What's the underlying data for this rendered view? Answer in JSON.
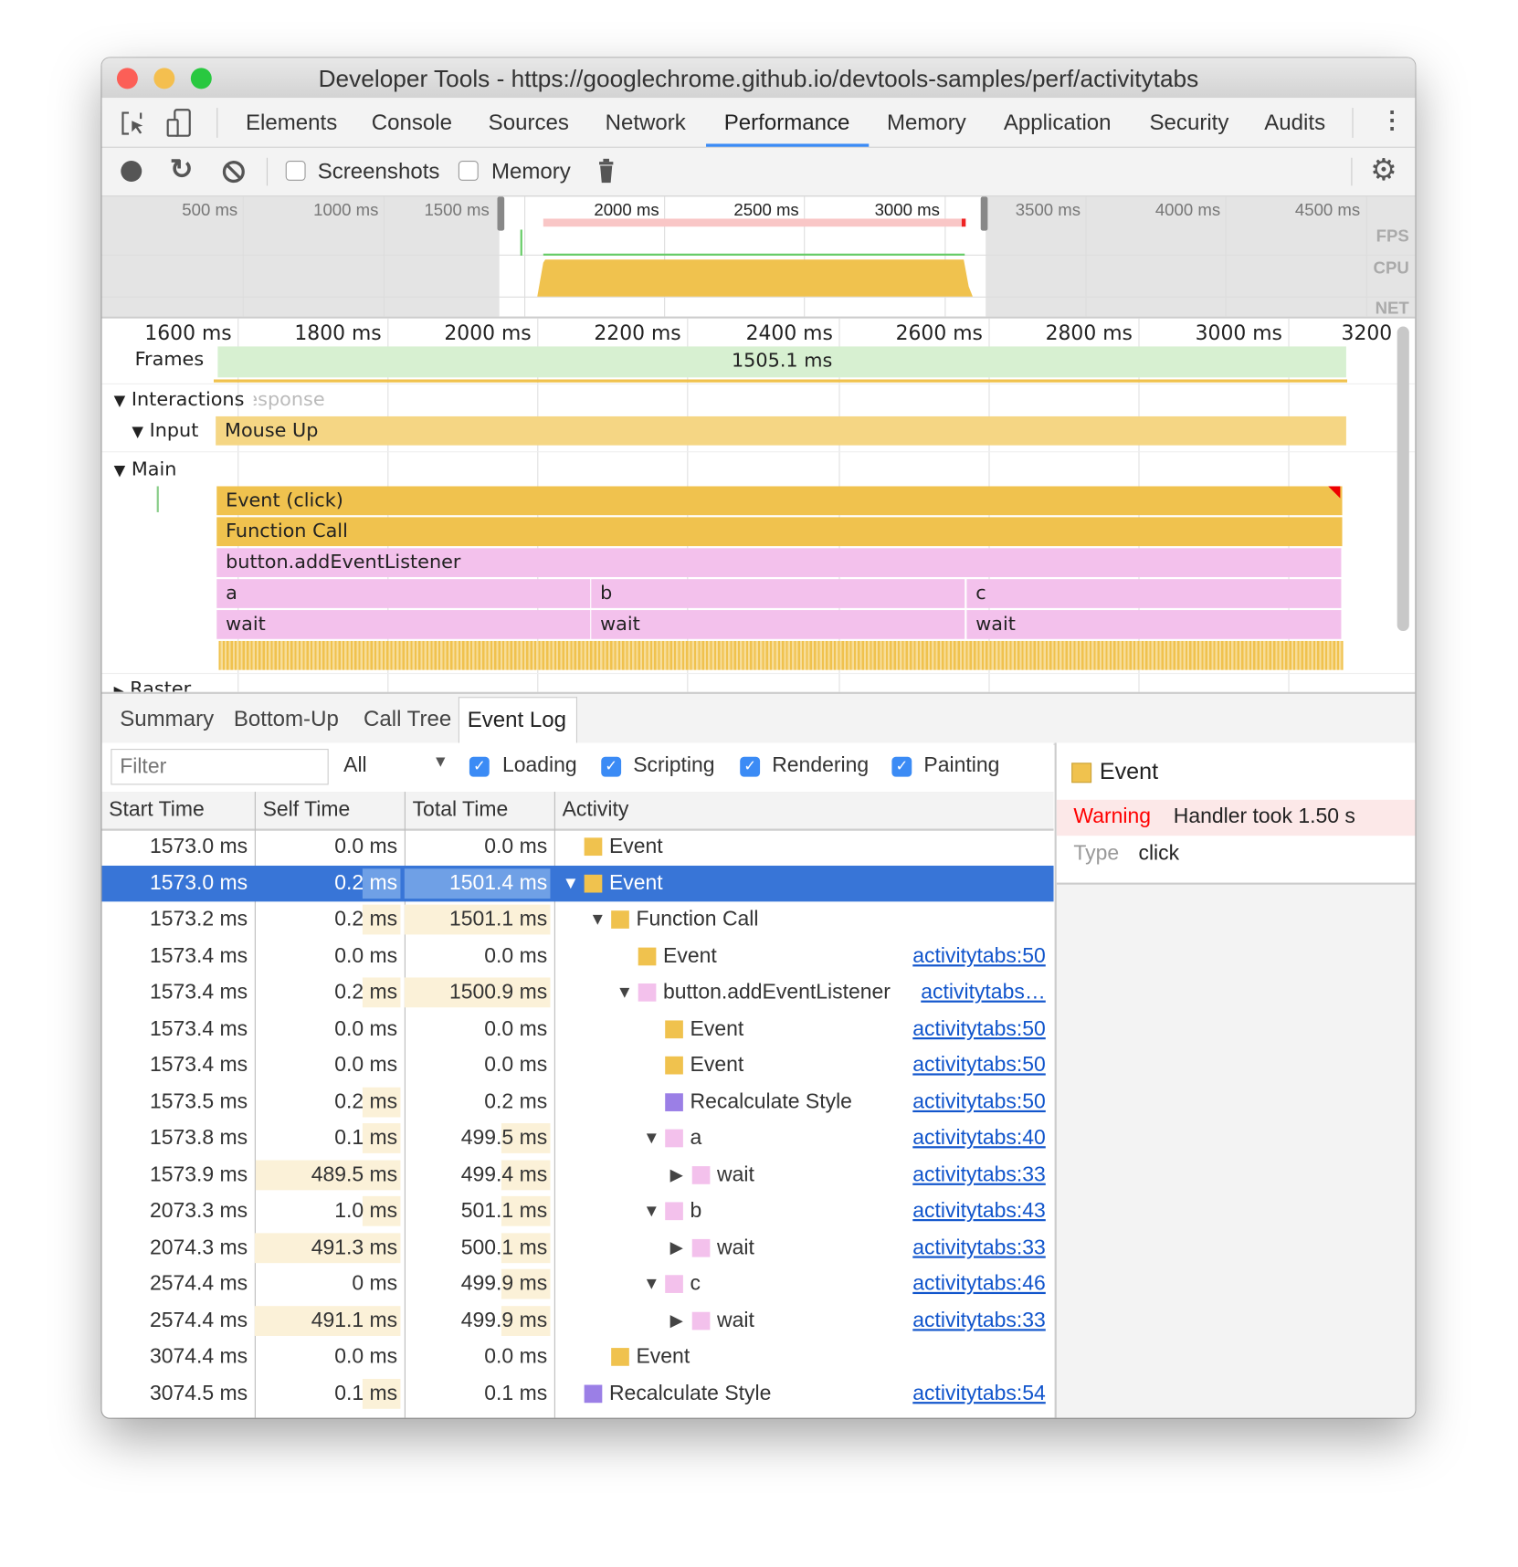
{
  "window": {
    "title": "Developer Tools - https://googlechrome.github.io/devtools-samples/perf/activitytabs"
  },
  "tabs": [
    {
      "label": "Elements"
    },
    {
      "label": "Console"
    },
    {
      "label": "Sources"
    },
    {
      "label": "Network"
    },
    {
      "label": "Performance",
      "active": true
    },
    {
      "label": "Memory"
    },
    {
      "label": "Application"
    },
    {
      "label": "Security"
    },
    {
      "label": "Audits"
    }
  ],
  "toolbar": {
    "screenshots_label": "Screenshots",
    "memory_label": "Memory",
    "screenshots_checked": false,
    "memory_checked": false
  },
  "overview": {
    "ticks": [
      "500 ms",
      "1000 ms",
      "1500 ms",
      "2000 ms",
      "2500 ms",
      "3000 ms",
      "3500 ms",
      "4000 ms",
      "4500 ms"
    ],
    "fps": "FPS",
    "cpu": "CPU",
    "net": "NET"
  },
  "flame": {
    "ticks": [
      "1600 ms",
      "1800 ms",
      "2000 ms",
      "2200 ms",
      "2400 ms",
      "2600 ms",
      "2800 ms",
      "3000 ms",
      "3200"
    ],
    "frames_label": "Frames",
    "frame_duration": "1505.1 ms",
    "interactions_label": "Interactions",
    "interactions_overlay": "Response",
    "input_label": "Input",
    "mouse_up": "Mouse Up",
    "main_label": "Main",
    "raster_label": "Raster",
    "event_click": "Event (click)",
    "function_call": "Function Call",
    "add_listener": "button.addEventListener",
    "a": "a",
    "b": "b",
    "c": "c",
    "wait": "wait"
  },
  "bottom_tabs": [
    {
      "label": "Summary"
    },
    {
      "label": "Bottom-Up"
    },
    {
      "label": "Call Tree"
    },
    {
      "label": "Event Log",
      "active": true
    }
  ],
  "filter": {
    "placeholder": "Filter",
    "select": "All",
    "categories": [
      {
        "label": "Loading",
        "checked": true
      },
      {
        "label": "Scripting",
        "checked": true
      },
      {
        "label": "Rendering",
        "checked": true
      },
      {
        "label": "Painting",
        "checked": true
      }
    ]
  },
  "columns": [
    "Start Time",
    "Self Time",
    "Total Time",
    "Activity"
  ],
  "rows": [
    {
      "start": "1573.0 ms",
      "self": "0.0 ms",
      "total": "0.0 ms",
      "activity": "Event",
      "color": "#f0c24e",
      "indent": 0,
      "exp": "",
      "link": ""
    },
    {
      "start": "1573.0 ms",
      "self": "0.2 ms",
      "total": "1501.4 ms",
      "activity": "Event",
      "color": "#f0c24e",
      "indent": 0,
      "exp": "down",
      "link": "",
      "selected": true
    },
    {
      "start": "1573.2 ms",
      "self": "0.2 ms",
      "total": "1501.1 ms",
      "activity": "Function Call",
      "color": "#f0c24e",
      "indent": 1,
      "exp": "down",
      "link": ""
    },
    {
      "start": "1573.4 ms",
      "self": "0.0 ms",
      "total": "0.0 ms",
      "activity": "Event",
      "color": "#f0c24e",
      "indent": 2,
      "exp": "",
      "link": "activitytabs:50"
    },
    {
      "start": "1573.4 ms",
      "self": "0.2 ms",
      "total": "1500.9 ms",
      "activity": "button.addEventListener",
      "color": "#f3c1ec",
      "indent": 2,
      "exp": "down",
      "link": "activitytabs…"
    },
    {
      "start": "1573.4 ms",
      "self": "0.0 ms",
      "total": "0.0 ms",
      "activity": "Event",
      "color": "#f0c24e",
      "indent": 3,
      "exp": "",
      "link": "activitytabs:50"
    },
    {
      "start": "1573.4 ms",
      "self": "0.0 ms",
      "total": "0.0 ms",
      "activity": "Event",
      "color": "#f0c24e",
      "indent": 3,
      "exp": "",
      "link": "activitytabs:50"
    },
    {
      "start": "1573.5 ms",
      "self": "0.2 ms",
      "total": "0.2 ms",
      "activity": "Recalculate Style",
      "color": "#9b7fe6",
      "indent": 3,
      "exp": "",
      "link": "activitytabs:50"
    },
    {
      "start": "1573.8 ms",
      "self": "0.1 ms",
      "total": "499.5 ms",
      "activity": "a",
      "color": "#f3c1ec",
      "indent": 3,
      "exp": "down",
      "link": "activitytabs:40"
    },
    {
      "start": "1573.9 ms",
      "self": "489.5 ms",
      "total": "499.4 ms",
      "activity": "wait",
      "color": "#f3c1ec",
      "indent": 4,
      "exp": "right",
      "link": "activitytabs:33"
    },
    {
      "start": "2073.3 ms",
      "self": "1.0 ms",
      "total": "501.1 ms",
      "activity": "b",
      "color": "#f3c1ec",
      "indent": 3,
      "exp": "down",
      "link": "activitytabs:43"
    },
    {
      "start": "2074.3 ms",
      "self": "491.3 ms",
      "total": "500.1 ms",
      "activity": "wait",
      "color": "#f3c1ec",
      "indent": 4,
      "exp": "right",
      "link": "activitytabs:33"
    },
    {
      "start": "2574.4 ms",
      "self": "0 ms",
      "total": "499.9 ms",
      "activity": "c",
      "color": "#f3c1ec",
      "indent": 3,
      "exp": "down",
      "link": "activitytabs:46"
    },
    {
      "start": "2574.4 ms",
      "self": "491.1 ms",
      "total": "499.9 ms",
      "activity": "wait",
      "color": "#f3c1ec",
      "indent": 4,
      "exp": "right",
      "link": "activitytabs:33"
    },
    {
      "start": "3074.4 ms",
      "self": "0.0 ms",
      "total": "0.0 ms",
      "activity": "Event",
      "color": "#f0c24e",
      "indent": 1,
      "exp": "",
      "link": ""
    },
    {
      "start": "3074.5 ms",
      "self": "0.1 ms",
      "total": "0.1 ms",
      "activity": "Recalculate Style",
      "color": "#9b7fe6",
      "indent": 0,
      "exp": "",
      "link": "activitytabs:54"
    }
  ],
  "detail": {
    "title": "Event",
    "color": "#f0c24e",
    "warning_label": "Warning",
    "warning_text": "Handler took 1.50 s",
    "type_label": "Type",
    "type_value": "click"
  }
}
